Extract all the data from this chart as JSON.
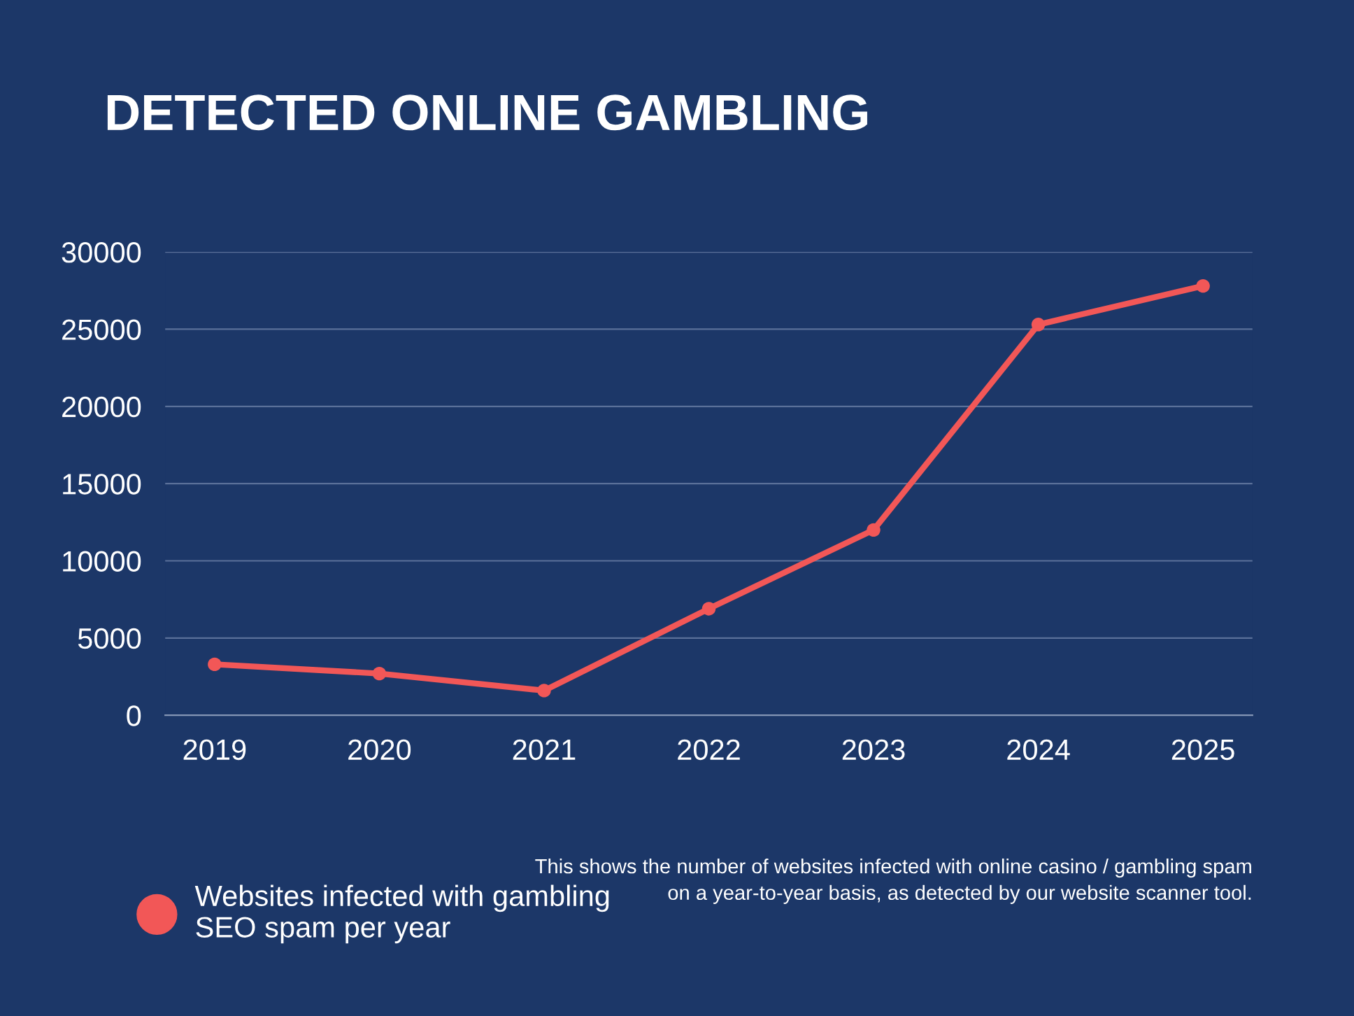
{
  "chart_data": {
    "type": "line",
    "title": "DETECTED ONLINE GAMBLING",
    "categories": [
      "2019",
      "2020",
      "2021",
      "2022",
      "2023",
      "2024",
      "2025"
    ],
    "series": [
      {
        "name": "Websites infected with gambling SEO spam per year",
        "color": "#f25757",
        "values": [
          3300,
          2700,
          1600,
          6900,
          12000,
          25300,
          27800
        ]
      }
    ],
    "ylim": [
      0,
      30000
    ],
    "yticks": [
      0,
      5000,
      10000,
      15000,
      20000,
      25000,
      30000
    ],
    "grid": "y",
    "legend": "bottom left",
    "marker": "circle",
    "line_style": "solid",
    "annotations": [
      "This shows the number of websites infected with online casino / gambling spam  on a year-to-year basis, as detected by our website scanner tool."
    ]
  }
}
